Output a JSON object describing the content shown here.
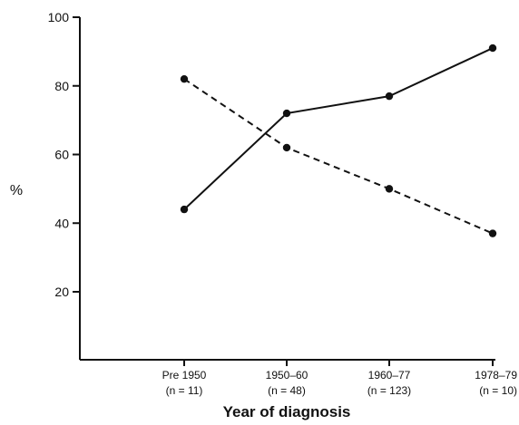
{
  "chart_data": {
    "type": "line",
    "title": "",
    "xlabel": "Year of diagnosis",
    "ylabel": "%",
    "categories": [
      "Pre 1950",
      "1950–60",
      "1960–77",
      "1978–79"
    ],
    "category_n": [
      "(n = 11)",
      "(n = 48)",
      "(n = 123)",
      "(n = 10)"
    ],
    "ylim": [
      0,
      100
    ],
    "yticks": [
      20,
      40,
      60,
      80,
      100
    ],
    "grid": false,
    "series": [
      {
        "style": "solid",
        "values": [
          44,
          72,
          77,
          91
        ]
      },
      {
        "style": "dashed",
        "values": [
          82,
          62,
          50,
          37
        ]
      }
    ]
  }
}
